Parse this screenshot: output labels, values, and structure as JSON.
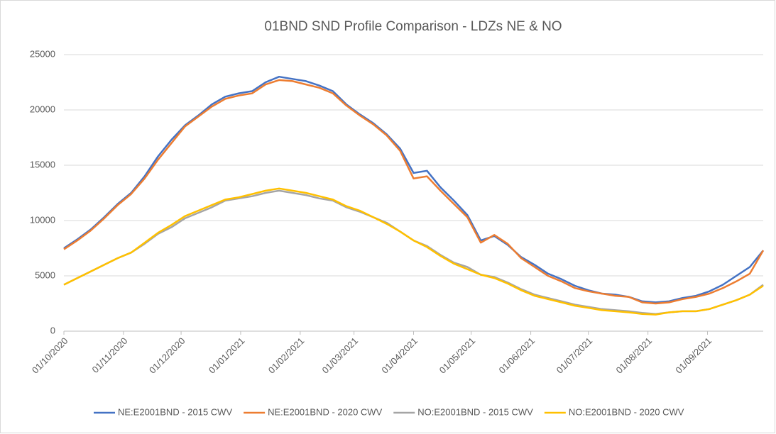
{
  "chart_data": {
    "type": "line",
    "title": "01BND SND Profile Comparison - LDZs NE & NO",
    "x": [
      "01/10/2020",
      "08/10/2020",
      "15/10/2020",
      "22/10/2020",
      "29/10/2020",
      "05/11/2020",
      "12/11/2020",
      "19/11/2020",
      "26/11/2020",
      "03/12/2020",
      "10/12/2020",
      "17/12/2020",
      "24/12/2020",
      "31/12/2020",
      "07/01/2021",
      "14/01/2021",
      "21/01/2021",
      "28/01/2021",
      "04/02/2021",
      "11/02/2021",
      "18/02/2021",
      "25/02/2021",
      "04/03/2021",
      "11/03/2021",
      "18/03/2021",
      "25/03/2021",
      "01/04/2021",
      "08/04/2021",
      "15/04/2021",
      "22/04/2021",
      "29/04/2021",
      "06/05/2021",
      "13/05/2021",
      "20/05/2021",
      "27/05/2021",
      "03/06/2021",
      "10/06/2021",
      "17/06/2021",
      "24/06/2021",
      "01/07/2021",
      "08/07/2021",
      "15/07/2021",
      "22/07/2021",
      "29/07/2021",
      "05/08/2021",
      "12/08/2021",
      "19/08/2021",
      "26/08/2021",
      "02/09/2021",
      "09/09/2021",
      "16/09/2021",
      "23/09/2021",
      "30/09/2021"
    ],
    "series": [
      {
        "name": "NE:E2001BND - 2015 CWV",
        "color": "#4472c4",
        "values": [
          7500,
          8300,
          9200,
          10300,
          11500,
          12500,
          14000,
          15800,
          17300,
          18600,
          19500,
          20500,
          21200,
          21500,
          21700,
          22500,
          23000,
          22800,
          22600,
          22200,
          21700,
          20500,
          19600,
          18800,
          17800,
          16500,
          14300,
          14500,
          13000,
          11800,
          10500,
          8200,
          8600,
          7800,
          6700,
          6000,
          5200,
          4700,
          4100,
          3700,
          3400,
          3300,
          3100,
          2700,
          2600,
          2700,
          3000,
          3200,
          3600,
          4200,
          5000,
          5800,
          7300
        ]
      },
      {
        "name": "NE:E2001BND - 2020 CWV",
        "color": "#ed7d31",
        "values": [
          7400,
          8200,
          9100,
          10200,
          11400,
          12400,
          13800,
          15500,
          17000,
          18500,
          19400,
          20300,
          21000,
          21300,
          21500,
          22300,
          22700,
          22600,
          22300,
          22000,
          21500,
          20400,
          19500,
          18700,
          17700,
          16300,
          13800,
          14000,
          12700,
          11500,
          10300,
          8000,
          8700,
          7900,
          6600,
          5800,
          5000,
          4500,
          3900,
          3600,
          3400,
          3200,
          3100,
          2600,
          2500,
          2600,
          2900,
          3100,
          3400,
          3900,
          4500,
          5200,
          7300
        ]
      },
      {
        "name": "NO:E2001BND - 2015 CWV",
        "color": "#a5a5a5",
        "values": [
          4200,
          4800,
          5400,
          6000,
          6600,
          7100,
          7900,
          8800,
          9400,
          10200,
          10700,
          11200,
          11800,
          12000,
          12200,
          12500,
          12700,
          12500,
          12300,
          12000,
          11800,
          11200,
          10800,
          10300,
          9800,
          9000,
          8200,
          7700,
          6900,
          6200,
          5800,
          5100,
          4900,
          4400,
          3800,
          3300,
          3000,
          2700,
          2400,
          2200,
          2000,
          1900,
          1800,
          1650,
          1550,
          1700,
          1800,
          1800,
          2000,
          2400,
          2800,
          3300,
          4200
        ]
      },
      {
        "name": "NO:E2001BND - 2020 CWV",
        "color": "#ffc000",
        "values": [
          4200,
          4800,
          5400,
          6000,
          6600,
          7100,
          8000,
          8900,
          9600,
          10400,
          10900,
          11400,
          11900,
          12100,
          12400,
          12700,
          12900,
          12700,
          12500,
          12200,
          11900,
          11300,
          10900,
          10300,
          9700,
          9000,
          8200,
          7600,
          6800,
          6100,
          5600,
          5100,
          4800,
          4300,
          3700,
          3200,
          2900,
          2600,
          2300,
          2100,
          1900,
          1800,
          1700,
          1550,
          1500,
          1700,
          1800,
          1800,
          2000,
          2400,
          2800,
          3300,
          4100
        ]
      }
    ],
    "xlim": [
      "01/10/2020",
      "30/09/2021"
    ],
    "xticks": [
      "01/10/2020",
      "01/11/2020",
      "01/12/2020",
      "01/01/2021",
      "01/02/2021",
      "01/03/2021",
      "01/04/2021",
      "01/05/2021",
      "01/06/2021",
      "01/07/2021",
      "01/08/2021",
      "01/09/2021"
    ],
    "ylim": [
      0,
      25000
    ],
    "yticks": [
      0,
      5000,
      10000,
      15000,
      20000,
      25000
    ],
    "grid": true,
    "legend": "bottom"
  }
}
